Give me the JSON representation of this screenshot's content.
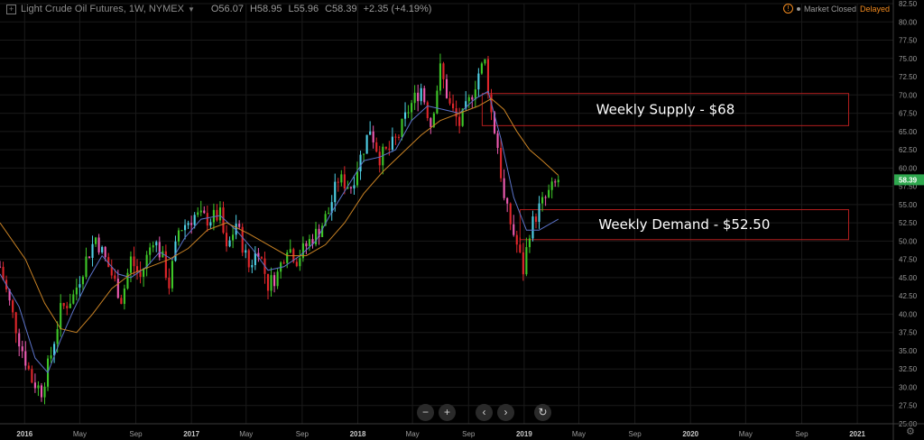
{
  "header": {
    "symbol": "Light Crude Oil Futures, 1W, NYMEX",
    "open": "O56.07",
    "high": "H58.95",
    "low": "L55.96",
    "close": "C58.39",
    "change": "+2.35 (+4.19%)",
    "market_status": "Market Closed",
    "delayed_label": "Delayed"
  },
  "controls": {
    "zoom_out": "−",
    "zoom_in": "+",
    "scroll_left": "‹",
    "scroll_right": "›",
    "reset": "↻"
  },
  "colors": {
    "up": "#3ec628",
    "up_alt": "#4fd0e6",
    "down": "#e0262b",
    "down_alt": "#ec5ab0",
    "ma_fast": "#5b73c9",
    "ma_slow": "#c98224",
    "zone_border": "#b21e1e",
    "last_price_bg": "#2fa84f",
    "grid": "#1a1a1a"
  },
  "chart_data": {
    "type": "candlestick",
    "ylim": [
      25.0,
      82.5
    ],
    "y_ticks": [
      25.0,
      27.5,
      30.0,
      32.5,
      35.0,
      37.5,
      40.0,
      42.5,
      45.0,
      47.5,
      50.0,
      52.5,
      55.0,
      57.5,
      60.0,
      62.5,
      65.0,
      67.5,
      70.0,
      72.5,
      75.0,
      77.5,
      80.0,
      82.5
    ],
    "x_range": [
      "2015-11-08",
      "2021-03-21"
    ],
    "x_ticks": [
      {
        "label": "2016",
        "date": "2016-01-01",
        "bold": true
      },
      {
        "label": "May",
        "date": "2016-05-01"
      },
      {
        "label": "Sep",
        "date": "2016-09-01"
      },
      {
        "label": "2017",
        "date": "2017-01-01",
        "bold": true
      },
      {
        "label": "May",
        "date": "2017-05-01"
      },
      {
        "label": "Sep",
        "date": "2017-09-01"
      },
      {
        "label": "2018",
        "date": "2018-01-01",
        "bold": true
      },
      {
        "label": "May",
        "date": "2018-05-01"
      },
      {
        "label": "Sep",
        "date": "2018-09-01"
      },
      {
        "label": "2019",
        "date": "2019-01-01",
        "bold": true
      },
      {
        "label": "May",
        "date": "2019-05-01"
      },
      {
        "label": "Sep",
        "date": "2019-09-01"
      },
      {
        "label": "2020",
        "date": "2020-01-01",
        "bold": true
      },
      {
        "label": "May",
        "date": "2020-05-01"
      },
      {
        "label": "Sep",
        "date": "2020-09-01"
      },
      {
        "label": "2021",
        "date": "2021-01-01",
        "bold": true
      }
    ],
    "weekly_close_path": [
      [
        "2015-11-08",
        46.5
      ],
      [
        "2015-12-20",
        36.5
      ],
      [
        "2016-01-17",
        31.0
      ],
      [
        "2016-02-07",
        29.5
      ],
      [
        "2016-02-28",
        34.5
      ],
      [
        "2016-03-20",
        40.5
      ],
      [
        "2016-04-17",
        42.5
      ],
      [
        "2016-05-15",
        47.5
      ],
      [
        "2016-06-05",
        50.5
      ],
      [
        "2016-07-03",
        46.5
      ],
      [
        "2016-08-01",
        42.0
      ],
      [
        "2016-08-21",
        47.5
      ],
      [
        "2016-09-11",
        45.0
      ],
      [
        "2016-10-09",
        50.5
      ],
      [
        "2016-10-30",
        47.5
      ],
      [
        "2016-11-13",
        44.0
      ],
      [
        "2016-12-04",
        51.5
      ],
      [
        "2017-01-08",
        53.5
      ],
      [
        "2017-02-05",
        53.0
      ],
      [
        "2017-03-05",
        53.5
      ],
      [
        "2017-03-19",
        48.5
      ],
      [
        "2017-04-09",
        52.5
      ],
      [
        "2017-05-07",
        46.5
      ],
      [
        "2017-05-28",
        49.0
      ],
      [
        "2017-06-18",
        44.0
      ],
      [
        "2017-07-09",
        45.5
      ],
      [
        "2017-07-30",
        49.5
      ],
      [
        "2017-08-20",
        47.5
      ],
      [
        "2017-09-17",
        50.0
      ],
      [
        "2017-10-08",
        51.5
      ],
      [
        "2017-10-29",
        54.0
      ],
      [
        "2017-11-19",
        58.5
      ],
      [
        "2017-12-17",
        57.5
      ],
      [
        "2018-01-07",
        61.5
      ],
      [
        "2018-01-28",
        65.5
      ],
      [
        "2018-02-18",
        61.5
      ],
      [
        "2018-03-11",
        62.5
      ],
      [
        "2018-04-01",
        64.5
      ],
      [
        "2018-04-22",
        68.0
      ],
      [
        "2018-05-20",
        71.0
      ],
      [
        "2018-06-10",
        66.0
      ],
      [
        "2018-07-01",
        73.5
      ],
      [
        "2018-07-22",
        68.5
      ],
      [
        "2018-08-12",
        66.0
      ],
      [
        "2018-09-02",
        69.0
      ],
      [
        "2018-09-23",
        73.0
      ],
      [
        "2018-10-07",
        74.5
      ],
      [
        "2018-10-21",
        67.5
      ],
      [
        "2018-11-04",
        63.0
      ],
      [
        "2018-11-18",
        55.5
      ],
      [
        "2018-12-02",
        52.5
      ],
      [
        "2018-12-16",
        49.5
      ],
      [
        "2018-12-30",
        46.0
      ],
      [
        "2019-01-13",
        51.5
      ],
      [
        "2019-02-03",
        54.5
      ],
      [
        "2019-02-24",
        56.5
      ],
      [
        "2019-03-17",
        58.39
      ]
    ],
    "series": [
      {
        "values_ref": "ma_fast",
        "values": [
          [
            "2015-11-08",
            45.5
          ],
          [
            "2015-12-20",
            41.0
          ],
          [
            "2016-01-24",
            34.0
          ],
          [
            "2016-02-21",
            32.0
          ],
          [
            "2016-03-20",
            36.5
          ],
          [
            "2016-04-17",
            40.5
          ],
          [
            "2016-05-22",
            45.0
          ],
          [
            "2016-06-19",
            48.0
          ],
          [
            "2016-07-24",
            45.5
          ],
          [
            "2016-08-21",
            45.0
          ],
          [
            "2016-09-25",
            46.5
          ],
          [
            "2016-10-23",
            48.5
          ],
          [
            "2016-11-20",
            47.5
          ],
          [
            "2016-12-18",
            50.5
          ],
          [
            "2017-01-22",
            53.0
          ],
          [
            "2017-03-05",
            53.5
          ],
          [
            "2017-04-09",
            51.5
          ],
          [
            "2017-05-14",
            49.0
          ],
          [
            "2017-06-18",
            46.0
          ],
          [
            "2017-07-23",
            46.5
          ],
          [
            "2017-08-27",
            48.0
          ],
          [
            "2017-10-01",
            50.0
          ],
          [
            "2017-11-05",
            54.0
          ],
          [
            "2017-12-10",
            57.5
          ],
          [
            "2018-01-14",
            61.0
          ],
          [
            "2018-02-18",
            61.5
          ],
          [
            "2018-03-25",
            62.5
          ],
          [
            "2018-04-29",
            66.5
          ],
          [
            "2018-06-03",
            68.5
          ],
          [
            "2018-07-08",
            68.0
          ],
          [
            "2018-08-12",
            67.5
          ],
          [
            "2018-09-16",
            69.5
          ],
          [
            "2018-10-14",
            70.5
          ],
          [
            "2018-11-11",
            64.0
          ],
          [
            "2018-12-09",
            56.0
          ],
          [
            "2019-01-06",
            51.5
          ],
          [
            "2019-02-03",
            51.5
          ],
          [
            "2019-03-17",
            53.0
          ]
        ]
      },
      {
        "values_ref": "ma_slow",
        "values": [
          [
            "2015-11-08",
            52.5
          ],
          [
            "2016-01-03",
            47.5
          ],
          [
            "2016-02-14",
            41.5
          ],
          [
            "2016-03-20",
            38.0
          ],
          [
            "2016-04-24",
            37.5
          ],
          [
            "2016-05-29",
            40.0
          ],
          [
            "2016-07-10",
            43.5
          ],
          [
            "2016-08-21",
            45.5
          ],
          [
            "2016-10-02",
            46.5
          ],
          [
            "2016-11-13",
            47.5
          ],
          [
            "2016-12-25",
            49.0
          ],
          [
            "2017-02-05",
            51.5
          ],
          [
            "2017-03-19",
            52.5
          ],
          [
            "2017-05-07",
            51.0
          ],
          [
            "2017-06-18",
            49.5
          ],
          [
            "2017-07-30",
            48.0
          ],
          [
            "2017-09-10",
            48.0
          ],
          [
            "2017-10-22",
            49.5
          ],
          [
            "2017-12-03",
            52.5
          ],
          [
            "2018-01-14",
            56.5
          ],
          [
            "2018-02-25",
            59.5
          ],
          [
            "2018-04-08",
            62.0
          ],
          [
            "2018-05-20",
            64.5
          ],
          [
            "2018-07-01",
            66.5
          ],
          [
            "2018-08-12",
            67.5
          ],
          [
            "2018-09-23",
            68.5
          ],
          [
            "2018-10-21",
            69.5
          ],
          [
            "2018-11-18",
            68.0
          ],
          [
            "2018-12-16",
            65.0
          ],
          [
            "2019-01-13",
            62.5
          ],
          [
            "2019-02-10",
            61.0
          ],
          [
            "2019-03-17",
            59.0
          ]
        ]
      }
    ],
    "last_price": 58.39,
    "annotations": [
      {
        "label": "Weekly Supply - $68",
        "y_top": 70.2,
        "y_bottom": 65.8,
        "x_start": "2018-10-01",
        "x_end": "2020-12-13"
      },
      {
        "label": "Weekly Demand - $52.50",
        "y_top": 54.3,
        "y_bottom": 50.2,
        "x_start": "2018-12-23",
        "x_end": "2020-12-13"
      }
    ]
  }
}
